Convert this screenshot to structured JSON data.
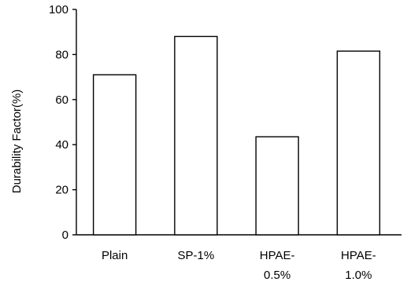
{
  "chart_data": {
    "type": "bar",
    "title": "",
    "xlabel": "",
    "ylabel": "Durability Factor(%)",
    "ylim": [
      0,
      100
    ],
    "yticks": [
      "0",
      "20",
      "40",
      "60",
      "80",
      "100"
    ],
    "categories": [
      [
        "Plain"
      ],
      [
        "SP-1%"
      ],
      [
        "HPAE-",
        "0.5%"
      ],
      [
        "HPAE-",
        "1.0%"
      ]
    ],
    "values": [
      71,
      88,
      43.5,
      81.5
    ],
    "bar_fill": "#ffffff",
    "bar_stroke": "#000000",
    "grid": false,
    "legend": "none"
  }
}
